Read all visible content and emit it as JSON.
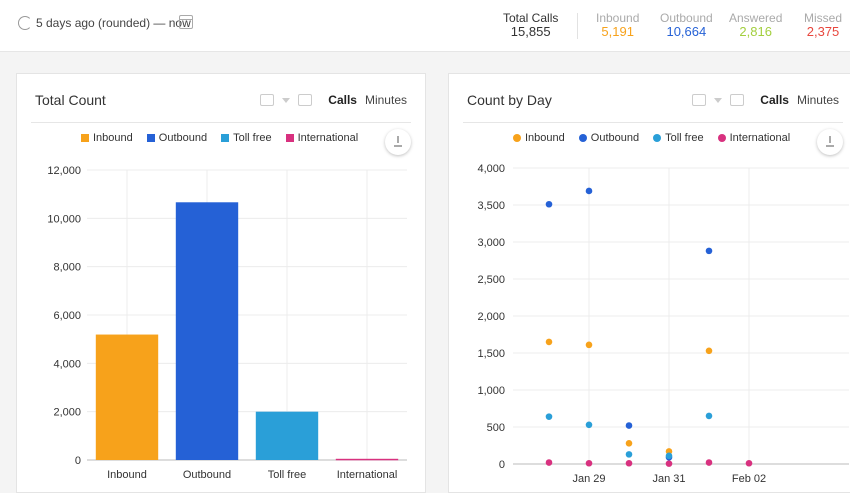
{
  "header": {
    "time_range": "5 days ago (rounded)  —  now",
    "stats": [
      {
        "label": "Total Calls",
        "value": "15,855",
        "color": "#333333"
      },
      {
        "label": "Inbound",
        "value": "5,191",
        "color": "#f7a21b"
      },
      {
        "label": "Outbound",
        "value": "10,664",
        "color": "#2561d6"
      },
      {
        "label": "Answered",
        "value": "2,816",
        "color": "#a3cf3e"
      },
      {
        "label": "Missed",
        "value": "2,375",
        "color": "#e8473e"
      }
    ]
  },
  "panels": {
    "left": {
      "title": "Total Count",
      "tab_calls": "Calls",
      "tab_minutes": "Minutes"
    },
    "right": {
      "title": "Count by Day",
      "tab_calls": "Calls",
      "tab_minutes": "Minutes"
    }
  },
  "legend": [
    {
      "label": "Inbound",
      "color": "#f7a21b"
    },
    {
      "label": "Outbound",
      "color": "#2561d6"
    },
    {
      "label": "Toll free",
      "color": "#2a9fd8"
    },
    {
      "label": "International",
      "color": "#d8317f"
    }
  ],
  "chart_data": [
    {
      "type": "bar",
      "title": "Total Count",
      "categories": [
        "Inbound",
        "Outbound",
        "Toll free",
        "International"
      ],
      "values": [
        5191,
        10664,
        2000,
        50
      ],
      "colors": [
        "#f7a21b",
        "#2561d6",
        "#2a9fd8",
        "#d8317f"
      ],
      "ylim": [
        0,
        12000
      ],
      "yticks": [
        "0",
        "2,000",
        "4,000",
        "6,000",
        "8,000",
        "10,000",
        "12,000"
      ],
      "grid": true
    },
    {
      "type": "scatter",
      "title": "Count by Day",
      "x": [
        "Jan 28",
        "Jan 29",
        "Jan 30",
        "Jan 31",
        "Feb 01",
        "Feb 02"
      ],
      "xticks": [
        "Jan 29",
        "Jan 31",
        "Feb 02"
      ],
      "ylim": [
        0,
        4000
      ],
      "yticks": [
        "0",
        "500",
        "1,000",
        "1,500",
        "2,000",
        "2,500",
        "3,000",
        "3,500",
        "4,000"
      ],
      "grid": true,
      "series": [
        {
          "name": "Inbound",
          "color": "#f7a21b",
          "values": [
            1650,
            1610,
            280,
            170,
            1530,
            null
          ]
        },
        {
          "name": "Outbound",
          "color": "#2561d6",
          "values": [
            3510,
            3690,
            520,
            90,
            2880,
            null
          ]
        },
        {
          "name": "Toll free",
          "color": "#2a9fd8",
          "values": [
            640,
            530,
            130,
            110,
            650,
            null
          ]
        },
        {
          "name": "International",
          "color": "#d8317f",
          "values": [
            20,
            10,
            10,
            5,
            20,
            10
          ]
        }
      ]
    }
  ]
}
